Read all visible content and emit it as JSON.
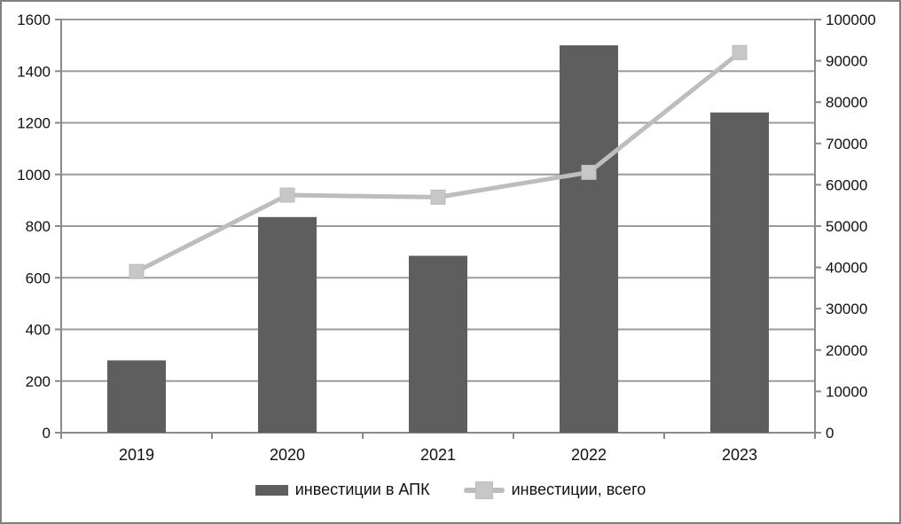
{
  "chart_data": {
    "type": "bar",
    "subtype": "combo-bar-line-dual-axis",
    "title": "",
    "categories": [
      "2019",
      "2020",
      "2021",
      "2022",
      "2023"
    ],
    "series": [
      {
        "name": "инвестиции в АПК",
        "type": "bar",
        "axis": "left",
        "color": "#5e5e5e",
        "values": [
          280,
          835,
          685,
          1500,
          1240
        ]
      },
      {
        "name": "инвестиции, всего",
        "type": "line",
        "axis": "right",
        "color": "#bdbdbd",
        "marker": "square",
        "marker_color": "#c7c7c7",
        "values": [
          39000,
          57500,
          57000,
          63000,
          92000
        ]
      }
    ],
    "left_axis": {
      "min": 0,
      "max": 1600,
      "step": 200
    },
    "right_axis": {
      "min": 0,
      "max": 100000,
      "step": 10000
    },
    "grid": true,
    "legend_position": "bottom"
  },
  "styles": {
    "grid_color": "#9b9b9b",
    "axis_color": "#8a8a8a",
    "text_color": "#111111",
    "border_color": "#7f7f7f",
    "background": "#ffffff"
  }
}
